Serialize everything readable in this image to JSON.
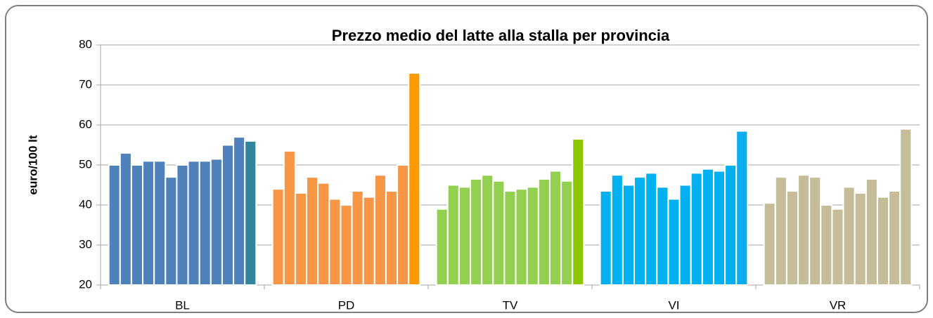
{
  "chart_data": {
    "type": "grouped-bar",
    "title": "Prezzo medio del latte alla stalla per provincia",
    "y_label": "euro/100 lt",
    "categories": [
      "BL",
      "PD",
      "TV",
      "VI",
      "VR"
    ],
    "values": [
      [
        50,
        53,
        50,
        51,
        51,
        47,
        50,
        51,
        51,
        51.5,
        55,
        57,
        56
      ],
      [
        44,
        53.5,
        43,
        47,
        45.5,
        41.5,
        40,
        43.5,
        42,
        47.5,
        43.5,
        50,
        73
      ],
      [
        39,
        45,
        44.5,
        46.5,
        47.5,
        46,
        43.5,
        44,
        44.5,
        46.5,
        48.5,
        46,
        56.5
      ],
      [
        43.5,
        47.5,
        45,
        47,
        48,
        44.5,
        41.5,
        45,
        48,
        49,
        48.5,
        50,
        58.5
      ],
      [
        40.5,
        47,
        43.5,
        47.5,
        47,
        40,
        39,
        44.5,
        43,
        46.5,
        42,
        43.5,
        59
      ]
    ],
    "colors": [
      "#4f81bd",
      "#f79646",
      "#92d050",
      "#00b0f0",
      "#c4bd97"
    ],
    "last_colors": [
      "#31859c",
      "#ff9900",
      "#8cc600",
      "#0aaef0",
      "#c4bd97"
    ],
    "ylim": [
      20,
      80
    ],
    "yticks": [
      20,
      30,
      40,
      50,
      60,
      70,
      80
    ],
    "grid": true
  }
}
